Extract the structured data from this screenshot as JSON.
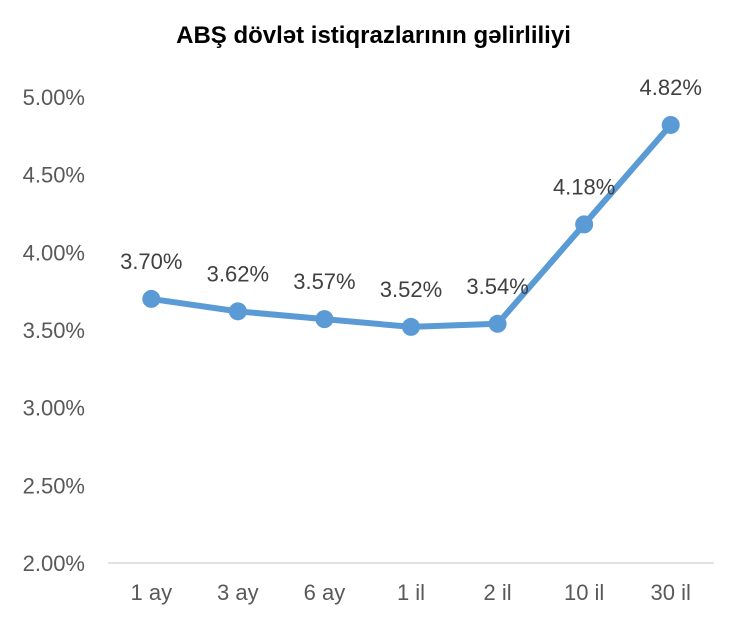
{
  "chart_data": {
    "type": "line",
    "title": "ABŞ dövlət istiqrazlarının gəlirliliyi",
    "categories": [
      "1 ay",
      "3 ay",
      "6 ay",
      "1 il",
      "2 il",
      "10 il",
      "30 il"
    ],
    "series": [
      {
        "values": [
          3.7,
          3.62,
          3.57,
          3.52,
          3.54,
          4.18,
          4.82
        ],
        "labels": [
          "3.70%",
          "3.62%",
          "3.57%",
          "3.52%",
          "3.54%",
          "4.18%",
          "4.82%"
        ]
      }
    ],
    "ylim": [
      2.0,
      5.0
    ],
    "yticks": [
      2.0,
      2.5,
      3.0,
      3.5,
      4.0,
      4.5,
      5.0
    ],
    "ytick_labels": [
      "2.00%",
      "2.50%",
      "3.00%",
      "3.50%",
      "4.00%",
      "4.50%",
      "5.00%"
    ],
    "grid": false,
    "legend": false,
    "colors": {
      "line": "#5B9BD5",
      "axis": "#D9D9D9"
    }
  }
}
